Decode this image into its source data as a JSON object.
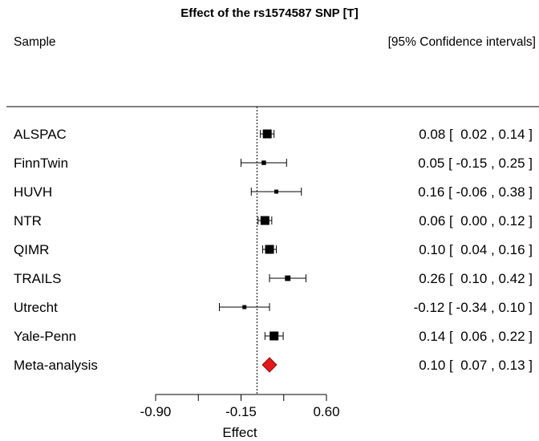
{
  "chart_data": {
    "type": "forest",
    "title": "Effect of the rs1574587 SNP [T]",
    "left_header": "Sample",
    "right_header": "[95% Confidence intervals]",
    "xlabel": "Effect",
    "xlim": [
      -0.9,
      0.6
    ],
    "xticks": [
      -0.9,
      -0.525,
      -0.15,
      0.225,
      0.6
    ],
    "xtick_labels": [
      "-0.90",
      "",
      "-0.15",
      "",
      "0.60"
    ],
    "reference_line": -0.01,
    "studies": [
      {
        "name": "ALSPAC",
        "effect": 0.08,
        "lower": 0.02,
        "upper": 0.14,
        "ci_text": "0.08 [  0.02 , 0.14 ]"
      },
      {
        "name": "FinnTwin",
        "effect": 0.05,
        "lower": -0.15,
        "upper": 0.25,
        "ci_text": "0.05 [ -0.15 , 0.25 ]"
      },
      {
        "name": "HUVH",
        "effect": 0.16,
        "lower": -0.06,
        "upper": 0.38,
        "ci_text": "0.16 [ -0.06 , 0.38 ]"
      },
      {
        "name": "NTR",
        "effect": 0.06,
        "lower": 0.0,
        "upper": 0.12,
        "ci_text": "0.06 [  0.00 , 0.12 ]"
      },
      {
        "name": "QIMR",
        "effect": 0.1,
        "lower": 0.04,
        "upper": 0.16,
        "ci_text": "0.10 [  0.04 , 0.16 ]"
      },
      {
        "name": "TRAILS",
        "effect": 0.26,
        "lower": 0.1,
        "upper": 0.42,
        "ci_text": "0.26 [  0.10 , 0.42 ]"
      },
      {
        "name": "Utrecht",
        "effect": -0.12,
        "lower": -0.34,
        "upper": 0.1,
        "ci_text": "-0.12 [ -0.34 , 0.10 ]"
      },
      {
        "name": "Yale-Penn",
        "effect": 0.14,
        "lower": 0.06,
        "upper": 0.22,
        "ci_text": "0.14 [  0.06 , 0.22 ]"
      }
    ],
    "summary": {
      "name": "Meta-analysis",
      "effect": 0.1,
      "lower": 0.07,
      "upper": 0.13,
      "ci_text": "0.10 [  0.07 , 0.13 ]"
    },
    "colors": {
      "study_marker": "#000000",
      "summary_marker": "#e31a1c",
      "summary_edge": "#7a0000"
    }
  }
}
